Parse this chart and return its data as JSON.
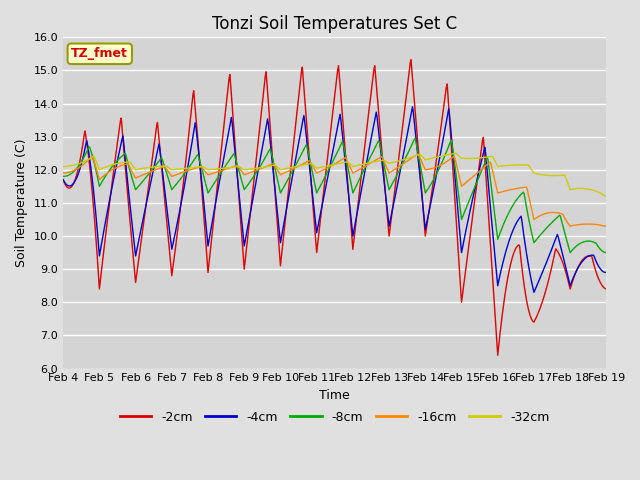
{
  "title": "Tonzi Soil Temperatures Set C",
  "xlabel": "Time",
  "ylabel": "Soil Temperature (C)",
  "ylim": [
    6.0,
    16.0
  ],
  "yticks": [
    6.0,
    7.0,
    8.0,
    9.0,
    10.0,
    11.0,
    12.0,
    13.0,
    14.0,
    15.0,
    16.0
  ],
  "xtick_labels": [
    "Feb 4",
    "Feb 5",
    "Feb 6",
    "Feb 7",
    "Feb 8",
    "Feb 9",
    "Feb 10",
    "Feb 11",
    "Feb 12",
    "Feb 13",
    "Feb 14",
    "Feb 15",
    "Feb 16",
    "Feb 17",
    "Feb 18",
    "Feb 19"
  ],
  "series_labels": [
    "-2cm",
    "-4cm",
    "-8cm",
    "-16cm",
    "-32cm"
  ],
  "series_colors": [
    "#dd0000",
    "#0000cc",
    "#00aa00",
    "#ff8800",
    "#cccc00"
  ],
  "line_width": 1.0,
  "background_color": "#e0e0e0",
  "plot_bg_color": "#d4d4d4",
  "grid_color": "#ffffff",
  "annotation_text": "TZ_fmet",
  "annotation_bg": "#ffffcc",
  "annotation_border": "#999900",
  "title_fontsize": 12,
  "axis_label_fontsize": 9,
  "tick_fontsize": 8,
  "legend_fontsize": 9
}
